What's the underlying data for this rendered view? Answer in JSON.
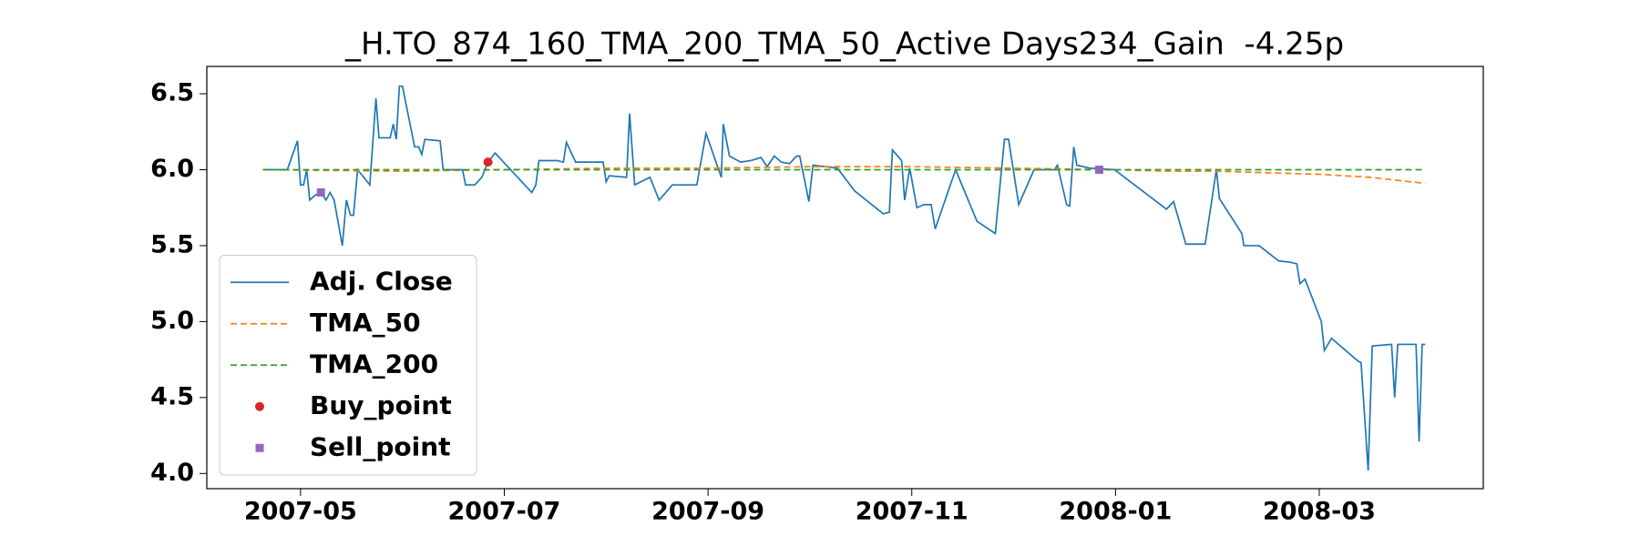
{
  "chart_data": {
    "type": "line",
    "title": "_H.TO_874_160_TMA_200_TMA_50_Active Days234_Gain  -4.25p",
    "xlim": [
      3.08,
      15.61
    ],
    "ylim": [
      3.9,
      6.68
    ],
    "xticks": [
      {
        "value": 4,
        "label": "2007-05"
      },
      {
        "value": 6,
        "label": "2007-07"
      },
      {
        "value": 8,
        "label": "2007-09"
      },
      {
        "value": 10,
        "label": "2007-11"
      },
      {
        "value": 12,
        "label": "2008-01"
      },
      {
        "value": 14,
        "label": "2008-03"
      }
    ],
    "yticks": [
      {
        "value": 4,
        "label": "4.0"
      },
      {
        "value": 4.5,
        "label": "4.5"
      },
      {
        "value": 5,
        "label": "5.0"
      },
      {
        "value": 5.5,
        "label": "5.5"
      },
      {
        "value": 6,
        "label": "6.0"
      },
      {
        "value": 6.5,
        "label": "6.5"
      }
    ],
    "legend": "lower left",
    "series": [
      {
        "name": "Adj. Close",
        "type": "line",
        "color": "#1f77b4",
        "linestyle": "solid",
        "x": [
          3.63,
          3.87,
          3.97,
          4.0,
          4.03,
          4.06,
          4.09,
          4.14,
          4.2,
          4.25,
          4.29,
          4.33,
          4.41,
          4.45,
          4.49,
          4.52,
          4.56,
          4.68,
          4.74,
          4.77,
          4.88,
          4.91,
          4.94,
          4.97,
          5.0,
          5.12,
          5.16,
          5.19,
          5.22,
          5.37,
          5.4,
          5.59,
          5.62,
          5.71,
          5.78,
          5.84,
          5.91,
          6.27,
          6.31,
          6.34,
          6.52,
          6.58,
          6.61,
          6.7,
          6.97,
          7.0,
          7.03,
          7.2,
          7.23,
          7.28,
          7.43,
          7.52,
          7.65,
          7.89,
          7.98,
          8.13,
          8.15,
          8.21,
          8.32,
          8.42,
          8.52,
          8.58,
          8.65,
          8.72,
          8.8,
          8.87,
          8.9,
          8.99,
          9.03,
          9.27,
          9.44,
          9.72,
          9.78,
          9.81,
          9.9,
          9.93,
          9.98,
          10.05,
          10.12,
          10.19,
          10.23,
          10.43,
          10.64,
          10.82,
          10.91,
          10.95,
          11.05,
          11.2,
          11.4,
          11.43,
          11.52,
          11.55,
          11.59,
          11.62,
          11.75,
          11.99,
          12.5,
          12.57,
          12.69,
          12.88,
          12.99,
          13.02,
          13.24,
          13.26,
          13.41,
          13.6,
          13.72,
          13.78,
          13.81,
          13.86,
          14.02,
          14.05,
          14.12,
          14.38,
          14.41,
          14.48,
          14.52,
          14.71,
          14.74,
          14.77,
          14.95,
          14.98,
          15.01,
          15.04
        ],
        "values": [
          6.0,
          6.0,
          6.19,
          5.9,
          5.9,
          6.0,
          5.8,
          5.83,
          5.85,
          5.8,
          5.85,
          5.8,
          5.5,
          5.8,
          5.7,
          5.7,
          6.0,
          5.9,
          6.47,
          6.21,
          6.21,
          6.3,
          6.2,
          6.55,
          6.55,
          6.15,
          6.15,
          6.1,
          6.2,
          6.19,
          6.0,
          6.0,
          5.9,
          5.9,
          5.95,
          6.05,
          6.11,
          5.85,
          5.9,
          6.06,
          6.06,
          6.05,
          6.18,
          6.05,
          6.05,
          5.92,
          5.96,
          5.95,
          6.37,
          5.9,
          5.95,
          5.8,
          5.9,
          5.9,
          6.24,
          5.95,
          6.3,
          6.09,
          6.05,
          6.06,
          6.08,
          6.02,
          6.09,
          6.05,
          6.04,
          6.09,
          6.09,
          5.79,
          6.03,
          6.01,
          5.86,
          5.71,
          5.72,
          6.13,
          6.06,
          5.8,
          6.01,
          5.75,
          5.77,
          5.77,
          5.61,
          6.0,
          5.66,
          5.58,
          6.2,
          6.2,
          5.77,
          6.0,
          6.0,
          6.03,
          5.77,
          5.76,
          6.15,
          6.03,
          6.01,
          6.0,
          5.74,
          5.79,
          5.51,
          5.51,
          6.0,
          5.81,
          5.58,
          5.5,
          5.5,
          5.4,
          5.39,
          5.38,
          5.25,
          5.28,
          5.0,
          4.81,
          4.89,
          4.74,
          4.73,
          4.02,
          4.84,
          4.85,
          4.5,
          4.85,
          4.85,
          4.21,
          4.85,
          4.85
        ]
      },
      {
        "name": "TMA_50",
        "type": "line",
        "color": "#ff7f0e",
        "linestyle": "dashed",
        "x": [
          3.63,
          5,
          6,
          7,
          8,
          9,
          10,
          11,
          12,
          12.5,
          13,
          13.5,
          14,
          14.5,
          15.04
        ],
        "values": [
          6.0,
          5.99,
          6.0,
          6.01,
          6.01,
          6.02,
          6.02,
          6.01,
          6.0,
          5.99,
          5.99,
          5.98,
          5.97,
          5.95,
          5.91
        ]
      },
      {
        "name": "TMA_200",
        "type": "line",
        "color": "#2ca02c",
        "linestyle": "dashed",
        "x": [
          3.63,
          15.04
        ],
        "values": [
          6.0,
          6.0
        ]
      },
      {
        "name": "Buy_point",
        "type": "scatter",
        "color": "#d62728",
        "marker": "circle",
        "x": [
          5.84
        ],
        "values": [
          6.05
        ]
      },
      {
        "name": "Sell_point",
        "type": "scatter",
        "color": "#9467bd",
        "marker": "square",
        "x": [
          4.2,
          11.84
        ],
        "values": [
          5.85,
          6.0
        ]
      }
    ]
  }
}
